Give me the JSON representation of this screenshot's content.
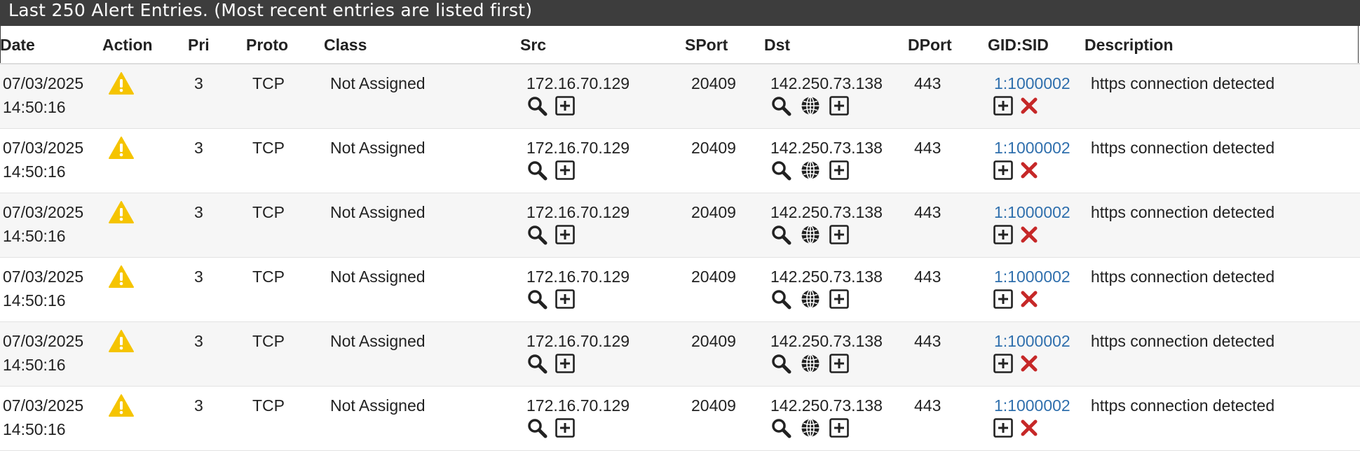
{
  "panel": {
    "title": "Last 250 Alert Entries. (Most recent entries are listed first)"
  },
  "columns": [
    "Date",
    "Action",
    "Pri",
    "Proto",
    "Class",
    "Src",
    "SPort",
    "Dst",
    "DPort",
    "GID:SID",
    "Description"
  ],
  "icons": {
    "action": "warning-triangle-icon",
    "src": [
      "search-icon",
      "plus-box-icon"
    ],
    "dst": [
      "search-icon",
      "globe-icon",
      "plus-box-icon"
    ],
    "sid": [
      "plus-box-icon",
      "close-x-icon"
    ]
  },
  "colors": {
    "header_bg": "#3d3d3d",
    "warning": "#f5c400",
    "link": "#2f6fad",
    "remove": "#c62828",
    "row_alt": "#f6f6f6"
  },
  "rows": [
    {
      "date": "07/03/2025",
      "time": "14:50:16",
      "pri": "3",
      "proto": "TCP",
      "class": "Not Assigned",
      "src": "172.16.70.129",
      "sport": "20409",
      "dst": "142.250.73.138",
      "dport": "443",
      "gidsid": "1:1000002",
      "description": "https connection detected"
    },
    {
      "date": "07/03/2025",
      "time": "14:50:16",
      "pri": "3",
      "proto": "TCP",
      "class": "Not Assigned",
      "src": "172.16.70.129",
      "sport": "20409",
      "dst": "142.250.73.138",
      "dport": "443",
      "gidsid": "1:1000002",
      "description": "https connection detected"
    },
    {
      "date": "07/03/2025",
      "time": "14:50:16",
      "pri": "3",
      "proto": "TCP",
      "class": "Not Assigned",
      "src": "172.16.70.129",
      "sport": "20409",
      "dst": "142.250.73.138",
      "dport": "443",
      "gidsid": "1:1000002",
      "description": "https connection detected"
    },
    {
      "date": "07/03/2025",
      "time": "14:50:16",
      "pri": "3",
      "proto": "TCP",
      "class": "Not Assigned",
      "src": "172.16.70.129",
      "sport": "20409",
      "dst": "142.250.73.138",
      "dport": "443",
      "gidsid": "1:1000002",
      "description": "https connection detected"
    },
    {
      "date": "07/03/2025",
      "time": "14:50:16",
      "pri": "3",
      "proto": "TCP",
      "class": "Not Assigned",
      "src": "172.16.70.129",
      "sport": "20409",
      "dst": "142.250.73.138",
      "dport": "443",
      "gidsid": "1:1000002",
      "description": "https connection detected"
    },
    {
      "date": "07/03/2025",
      "time": "14:50:16",
      "pri": "3",
      "proto": "TCP",
      "class": "Not Assigned",
      "src": "172.16.70.129",
      "sport": "20409",
      "dst": "142.250.73.138",
      "dport": "443",
      "gidsid": "1:1000002",
      "description": "https connection detected"
    }
  ]
}
